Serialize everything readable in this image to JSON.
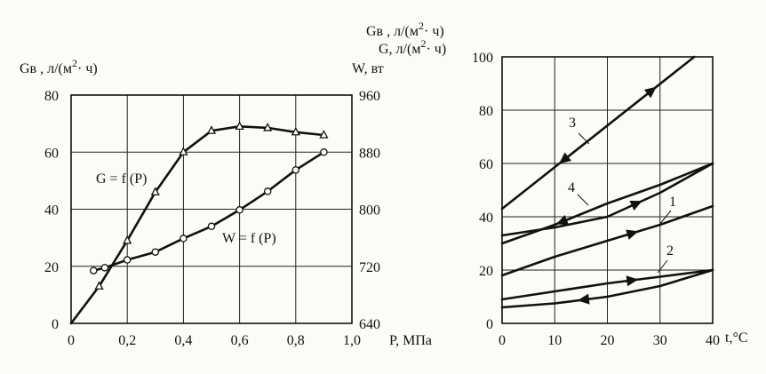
{
  "chart_data": [
    {
      "type": "line",
      "x": [
        0,
        0.1,
        0.2,
        0.3,
        0.4,
        0.5,
        0.6,
        0.7,
        0.8,
        0.9
      ],
      "xlim": [
        0,
        1.0
      ],
      "ylim": [
        0,
        80
      ],
      "y2lim": [
        640,
        960
      ],
      "x_ticks": [
        "0",
        "0,2",
        "0,4",
        "0,6",
        "0,8",
        "1,0"
      ],
      "y_ticks": [
        "0",
        "20",
        "40",
        "60",
        "80"
      ],
      "y2_ticks": [
        "640",
        "720",
        "800",
        "880",
        "960"
      ],
      "xlabel": "P, МПа",
      "ylabel": "Gв , л/(м2· ч)",
      "y2label": "W, вт",
      "grid": true,
      "series": [
        {
          "name": "G = f (P)",
          "axis": "left",
          "marker": "triangle",
          "x": [
            0,
            0.1,
            0.2,
            0.3,
            0.4,
            0.5,
            0.6,
            0.7,
            0.8,
            0.9
          ],
          "values": [
            0,
            13,
            29,
            46,
            60,
            67.5,
            69,
            68.5,
            67,
            66
          ]
        },
        {
          "name": "W = f (P)",
          "axis": "right",
          "marker": "circle",
          "x": [
            0.08,
            0.12,
            0.2,
            0.3,
            0.4,
            0.5,
            0.6,
            0.7,
            0.8,
            0.9
          ],
          "values": [
            714,
            718,
            729,
            740,
            759,
            776,
            799,
            825,
            855,
            880
          ]
        }
      ]
    },
    {
      "type": "line",
      "xlim": [
        0,
        40
      ],
      "ylim": [
        0,
        100
      ],
      "x_ticks": [
        "0",
        "10",
        "20",
        "30",
        "40"
      ],
      "y_ticks": [
        "0",
        "20",
        "40",
        "60",
        "80",
        "100"
      ],
      "xlabel": "t,°C",
      "ylabel_lines": [
        "Gв , л/(м2· ч)",
        "G, л/(м2· ч)"
      ],
      "grid": true,
      "series": [
        {
          "name": "3",
          "segments": [
            {
              "x": [
                0,
                36.5
              ],
              "values": [
                43,
                100
              ]
            }
          ]
        },
        {
          "name": "4",
          "segments": [
            {
              "x": [
                0,
                10,
                20,
                30,
                40
              ],
              "values": [
                33,
                36,
                40,
                49,
                60
              ]
            },
            {
              "x": [
                0,
                10,
                20,
                30,
                40
              ],
              "values": [
                30,
                37,
                45,
                52,
                60
              ]
            }
          ]
        },
        {
          "name": "1",
          "segments": [
            {
              "x": [
                0,
                10,
                20,
                30,
                40
              ],
              "values": [
                18,
                25,
                31,
                37,
                44
              ]
            }
          ]
        },
        {
          "name": "2",
          "segments": [
            {
              "x": [
                0,
                10,
                20,
                30,
                40
              ],
              "values": [
                9,
                12,
                15,
                17.5,
                20
              ]
            },
            {
              "x": [
                0,
                10,
                20,
                30,
                40
              ],
              "values": [
                6,
                7.5,
                10,
                14,
                20
              ]
            }
          ]
        }
      ]
    }
  ]
}
